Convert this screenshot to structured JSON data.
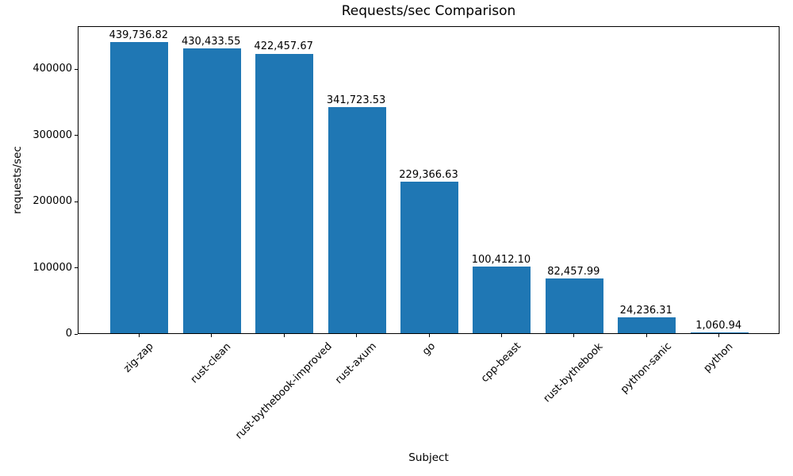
{
  "chart_data": {
    "type": "bar",
    "title": "Requests/sec Comparison",
    "xlabel": "Subject",
    "ylabel": "requests/sec",
    "categories": [
      "zig-zap",
      "rust-clean",
      "rust-bythebook-improved",
      "rust-axum",
      "go",
      "cpp-beast",
      "rust-bythebook",
      "python-sanic",
      "python"
    ],
    "values": [
      439736.82,
      430433.55,
      422457.67,
      341723.53,
      229366.63,
      100412.1,
      82457.99,
      24236.31,
      1060.94
    ],
    "bar_value_labels": [
      "439,736.82",
      "430,433.55",
      "422,457.67",
      "341,723.53",
      "229,366.63",
      "100,412.10",
      "82,457.99",
      "24,236.31",
      "1,060.94"
    ],
    "yticks": [
      0,
      100000,
      200000,
      300000,
      400000
    ],
    "ytick_labels": [
      "0",
      "100000",
      "200000",
      "300000",
      "400000"
    ],
    "ylim": [
      0,
      465000
    ],
    "xtick_rotation_deg": 45,
    "bar_color": "#1f77b4",
    "grid": false,
    "legend_position": "none"
  }
}
